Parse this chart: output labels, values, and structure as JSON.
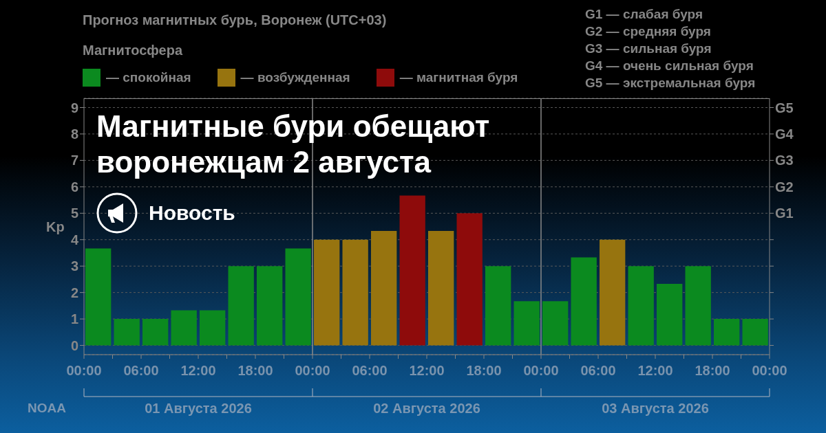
{
  "chart_data": {
    "type": "bar",
    "title": "Магнитные бури обещают воронежцам 2 августа",
    "subtitle": "Прогноз магнитных бурь, Воронеж (UTC+03)",
    "legend_title": "Магнитосфера",
    "ylabel": "Kp",
    "x": [
      "2026-08-01T01:30",
      "2026-08-01T04:30",
      "2026-08-01T07:30",
      "2026-08-01T10:30",
      "2026-08-01T13:30",
      "2026-08-01T16:30",
      "2026-08-01T19:30",
      "2026-08-01T22:30",
      "2026-08-02T01:30",
      "2026-08-02T04:30",
      "2026-08-02T07:30",
      "2026-08-02T10:30",
      "2026-08-02T13:30",
      "2026-08-02T16:30",
      "2026-08-02T19:30",
      "2026-08-02T22:30",
      "2026-08-03T01:30",
      "2026-08-03T04:30",
      "2026-08-03T07:30",
      "2026-08-03T10:30",
      "2026-08-03T13:30",
      "2026-08-03T16:30",
      "2026-08-03T19:30",
      "2026-08-03T22:30"
    ],
    "series": [
      {
        "name": "— спокойная",
        "color": "#0b8a1f",
        "values": [
          3.67,
          1,
          1,
          1.33,
          1.33,
          3,
          3,
          3.67,
          null,
          null,
          null,
          null,
          null,
          null,
          3,
          1.67,
          1.67,
          3.33,
          null,
          3,
          2.33,
          3,
          1,
          1
        ]
      },
      {
        "name": "— возбужденная",
        "color": "#97740f",
        "values": [
          null,
          null,
          null,
          null,
          null,
          null,
          null,
          null,
          4,
          4,
          4.33,
          null,
          4.33,
          null,
          null,
          null,
          null,
          null,
          4,
          null,
          null,
          null,
          null,
          null
        ]
      },
      {
        "name": "— магнитная буря",
        "color": "#8e0b0b",
        "values": [
          null,
          null,
          null,
          null,
          null,
          null,
          null,
          null,
          null,
          null,
          null,
          5.67,
          null,
          5,
          null,
          null,
          null,
          null,
          null,
          null,
          null,
          null,
          null,
          null
        ]
      }
    ],
    "stacked": true,
    "xlim": [
      "2026-08-01T00:00",
      "2026-08-04T00:00"
    ],
    "xticks": [
      {
        "value": "2026-08-01T00:00",
        "label": "00:00"
      },
      {
        "value": "2026-08-01T03:00",
        "label": null
      },
      {
        "value": "2026-08-01T06:00",
        "label": "06:00"
      },
      {
        "value": "2026-08-01T09:00",
        "label": null
      },
      {
        "value": "2026-08-01T12:00",
        "label": "12:00"
      },
      {
        "value": "2026-08-01T15:00",
        "label": null
      },
      {
        "value": "2026-08-01T18:00",
        "label": "18:00"
      },
      {
        "value": "2026-08-01T21:00",
        "label": null
      },
      {
        "value": "2026-08-02T00:00",
        "label": "00:00"
      },
      {
        "value": "2026-08-02T03:00",
        "label": null
      },
      {
        "value": "2026-08-02T06:00",
        "label": "06:00"
      },
      {
        "value": "2026-08-02T09:00",
        "label": null
      },
      {
        "value": "2026-08-02T12:00",
        "label": "12:00"
      },
      {
        "value": "2026-08-02T15:00",
        "label": null
      },
      {
        "value": "2026-08-02T18:00",
        "label": "18:00"
      },
      {
        "value": "2026-08-02T21:00",
        "label": null
      },
      {
        "value": "2026-08-03T00:00",
        "label": "00:00"
      },
      {
        "value": "2026-08-03T03:00",
        "label": null
      },
      {
        "value": "2026-08-03T06:00",
        "label": "06:00"
      },
      {
        "value": "2026-08-03T09:00",
        "label": null
      },
      {
        "value": "2026-08-03T12:00",
        "label": "12:00"
      },
      {
        "value": "2026-08-03T15:00",
        "label": null
      },
      {
        "value": "2026-08-03T18:00",
        "label": "18:00"
      },
      {
        "value": "2026-08-03T21:00",
        "label": null
      },
      {
        "value": "2026-08-04T00:00",
        "label": "00:00"
      }
    ],
    "ylim": [
      -0.35,
      9.35
    ],
    "yticks": [
      0,
      1,
      2,
      3,
      4,
      5,
      6,
      7,
      8,
      9
    ],
    "y2_categories": [
      "G5",
      "G4",
      "G3",
      "G2",
      "G1",
      null,
      null,
      null,
      null,
      null
    ],
    "grid": "y",
    "legend": "top left",
    "ref_lines": [
      {
        "axis": "x",
        "value": "2026-08-02T00:00",
        "color": "#8a8a8a"
      },
      {
        "axis": "x",
        "value": "2026-08-03T00:00",
        "color": "#8a8a8a"
      }
    ],
    "annotations": [
      "Новость",
      "NOAA",
      "G1 — слабая буря",
      "G2 — средняя буря",
      "G3 — сильная буря",
      "G4 — очень сильная буря",
      "G5 — экстремальная буря",
      "01 Августа 2026",
      "02 Августа 2026",
      "03 Августа 2026"
    ]
  }
}
